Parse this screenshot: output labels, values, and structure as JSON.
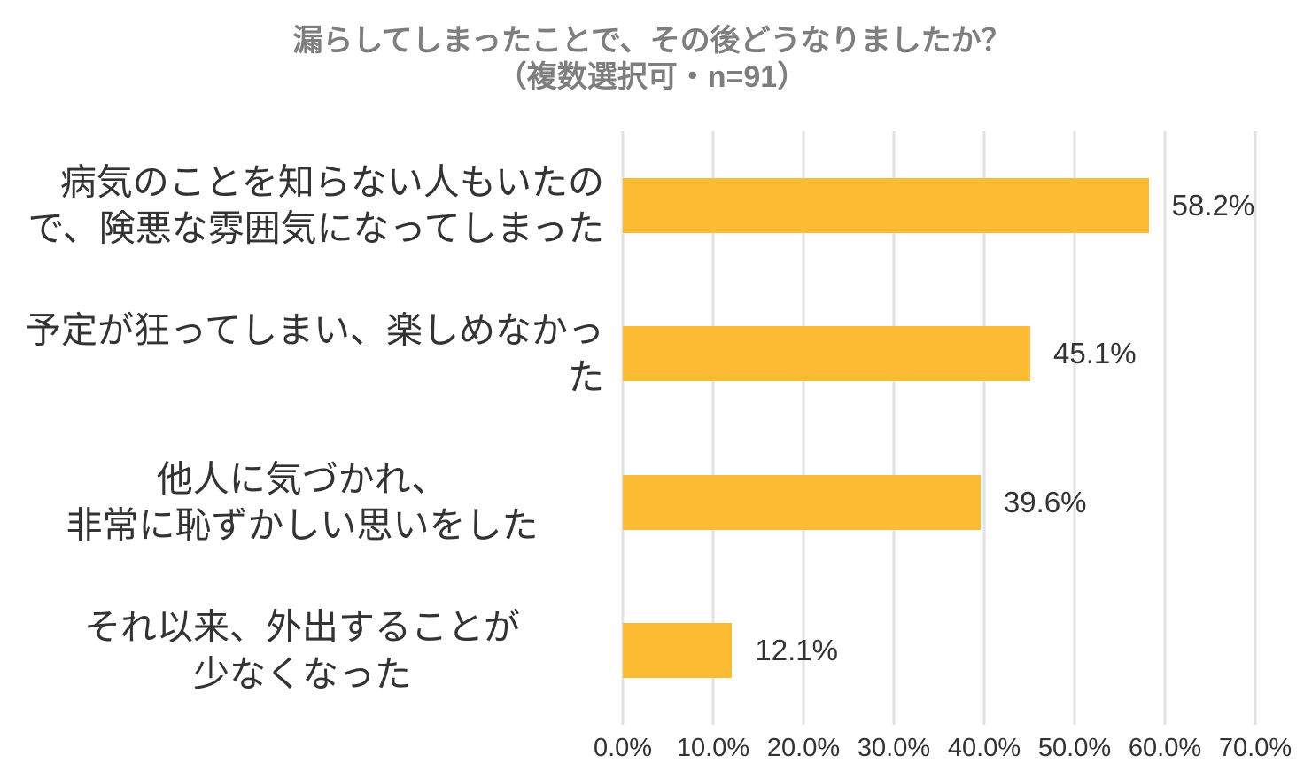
{
  "chart_data": {
    "type": "bar",
    "orientation": "horizontal",
    "title": "漏らしてしまったことで、その後どうなりましたか？",
    "subtitle": "（複数選択可・n=91）",
    "sample_size_label": "n=91",
    "categories": [
      "病気のことを知らない人もいたので、険悪な雰囲気になってしまった",
      "予定が狂ってしまい、楽しめなかった",
      "他人に気づかれ、非常に恥ずかしい思いをした",
      "それ以来、外出することが少なくなった"
    ],
    "category_lines": [
      [
        "病気のことを知らない人もいたの",
        "で、険悪な雰囲気になってしまった"
      ],
      [
        "予定が狂ってしまい、楽しめなかった"
      ],
      [
        "他人に気づかれ、",
        "非常に恥ずかしい思いをした"
      ],
      [
        "それ以来、外出することが",
        "少なくなった"
      ]
    ],
    "values": [
      58.2,
      45.1,
      39.6,
      12.1
    ],
    "value_labels": [
      "58.2%",
      "45.1%",
      "39.6%",
      "12.1%"
    ],
    "x_ticks": [
      "0.0%",
      "10.0%",
      "20.0%",
      "30.0%",
      "40.0%",
      "50.0%",
      "60.0%",
      "70.0%"
    ],
    "xlim": [
      0,
      70
    ],
    "grid": true,
    "legend": false,
    "colors": {
      "bar": "#FBBC34",
      "grid": "#E2E2E2",
      "title": "#7E7E7E",
      "text": "#333333",
      "background": "#FFFFFF"
    }
  }
}
